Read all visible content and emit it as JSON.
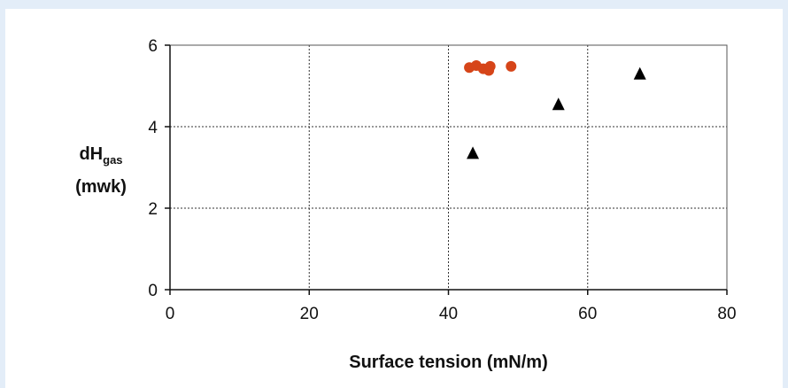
{
  "chart_data": {
    "type": "scatter",
    "xlabel": "Surface tension (mN/m)",
    "ylabel": {
      "main": "dH",
      "subscript": "gas",
      "unit": "(mwk)"
    },
    "xlim": [
      0,
      80
    ],
    "ylim": [
      0,
      6
    ],
    "xticks": [
      "0",
      "20",
      "40",
      "60",
      "80"
    ],
    "yticks": [
      "0",
      "2",
      "4",
      "6"
    ],
    "grid": true,
    "series": [
      {
        "marker": "circle",
        "color": "#d64519",
        "points": [
          [
            43.0,
            5.45
          ],
          [
            44.0,
            5.5
          ],
          [
            45.0,
            5.42
          ],
          [
            45.8,
            5.38
          ],
          [
            46.0,
            5.48
          ],
          [
            49.0,
            5.48
          ]
        ]
      },
      {
        "marker": "triangle",
        "color": "#000000",
        "points": [
          [
            43.5,
            3.35
          ],
          [
            55.8,
            4.55
          ],
          [
            67.5,
            5.3
          ]
        ]
      }
    ]
  }
}
